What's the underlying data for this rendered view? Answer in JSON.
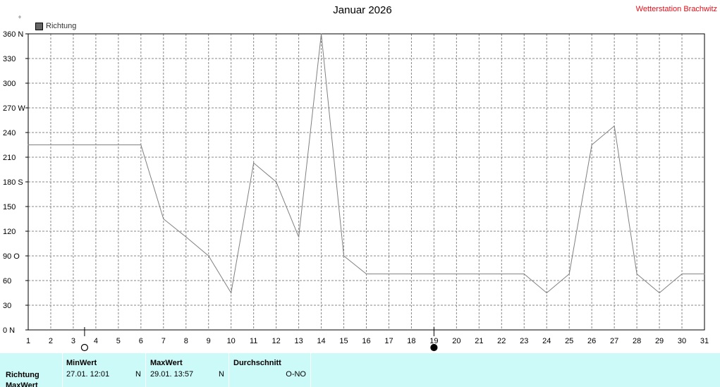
{
  "header": {
    "title": "Januar 2026",
    "station": "Wetterstation Brachwitz",
    "unit": "°"
  },
  "legend": {
    "label": "Richtung",
    "color": "#666666"
  },
  "chart_data": {
    "type": "line",
    "title": "Januar 2026",
    "x": [
      1,
      2,
      3,
      4,
      5,
      6,
      7,
      8,
      9,
      10,
      11,
      12,
      13,
      14,
      15,
      16,
      17,
      18,
      19,
      20,
      21,
      22,
      23,
      24,
      25,
      26,
      27,
      28,
      29,
      30,
      31
    ],
    "series": [
      {
        "name": "Richtung",
        "values": [
          225,
          225,
          225,
          225,
          225,
          225,
          135,
          113,
          90,
          45,
          203,
          180,
          113,
          360,
          90,
          68,
          68,
          68,
          68,
          68,
          68,
          68,
          68,
          45,
          68,
          225,
          248,
          68,
          45,
          68,
          68
        ]
      }
    ],
    "xlim": [
      1,
      31
    ],
    "ylim": [
      0,
      360
    ],
    "yticks": [
      {
        "v": 360,
        "label": "360 N"
      },
      {
        "v": 330,
        "label": "330"
      },
      {
        "v": 300,
        "label": "300"
      },
      {
        "v": 270,
        "label": "270 W"
      },
      {
        "v": 240,
        "label": "240"
      },
      {
        "v": 210,
        "label": "210"
      },
      {
        "v": 180,
        "label": "180 S"
      },
      {
        "v": 150,
        "label": "150"
      },
      {
        "v": 120,
        "label": "120"
      },
      {
        "v": 90,
        "label": "90  O"
      },
      {
        "v": 60,
        "label": "60"
      },
      {
        "v": 30,
        "label": "30"
      },
      {
        "v": 0,
        "label": "0   N"
      }
    ],
    "grid": true,
    "line_color": "#808080",
    "moon_phases": [
      {
        "day": 3.5,
        "phase": "full"
      },
      {
        "day": 19,
        "phase": "new"
      }
    ]
  },
  "table": {
    "row_label_1": "Richtung",
    "row_label_2": "MaxWert",
    "min": {
      "header": "MinWert",
      "date": "27.01.  12:01",
      "dir": "N"
    },
    "max": {
      "header": "MaxWert",
      "date": "29.01.  13:57",
      "dir": "N"
    },
    "avg": {
      "header": "Durchschnitt",
      "dir": "O-NO"
    }
  }
}
